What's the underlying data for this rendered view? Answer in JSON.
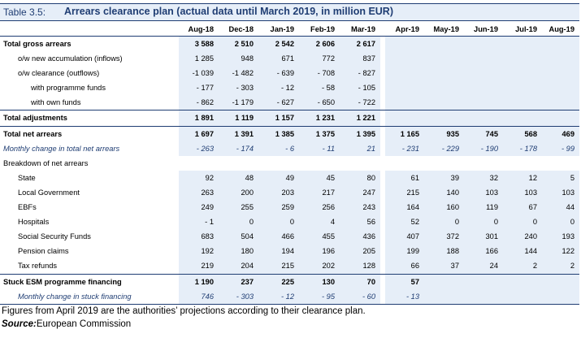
{
  "title": {
    "number": "Table 3.5:",
    "text": "Arrears clearance plan (actual data until March 2019, in million EUR)"
  },
  "columns": [
    "Aug-18",
    "Dec-18",
    "Jan-19",
    "Feb-19",
    "Mar-19",
    "Apr-19",
    "May-19",
    "Jun-19",
    "Jul-19",
    "Aug-19"
  ],
  "rows": [
    {
      "label": "Total gross arrears",
      "indent": 0,
      "style": "bold",
      "values": [
        "3 588",
        "2 510",
        "2 542",
        "2 606",
        "2 617",
        "",
        "",
        "",
        "",
        ""
      ]
    },
    {
      "label": "o/w new accumulation (inflows)",
      "indent": 1,
      "style": "",
      "values": [
        "1 285",
        "948",
        "671",
        "772",
        "837",
        "",
        "",
        "",
        "",
        ""
      ]
    },
    {
      "label": "o/w clearance (outflows)",
      "indent": 1,
      "style": "",
      "values": [
        "-1 039",
        "-1 482",
        "- 639",
        "- 708",
        "- 827",
        "",
        "",
        "",
        "",
        ""
      ]
    },
    {
      "label": "with programme funds",
      "indent": 2,
      "style": "",
      "values": [
        "- 177",
        "- 303",
        "- 12",
        "- 58",
        "- 105",
        "",
        "",
        "",
        "",
        ""
      ]
    },
    {
      "label": "with own funds",
      "indent": 2,
      "style": "",
      "values": [
        "- 862",
        "-1 179",
        "- 627",
        "- 650",
        "- 722",
        "",
        "",
        "",
        "",
        ""
      ]
    },
    {
      "label": "Total adjustments",
      "indent": 0,
      "style": "bold",
      "values": [
        "1 891",
        "1 119",
        "1 157",
        "1 231",
        "1 221",
        "",
        "",
        "",
        "",
        ""
      ]
    },
    {
      "label": "Total net arrears",
      "indent": 0,
      "style": "bold",
      "values": [
        "1 697",
        "1 391",
        "1 385",
        "1 375",
        "1 395",
        "1 165",
        "935",
        "745",
        "568",
        "469"
      ]
    },
    {
      "label": "Monthly change in total net arrears",
      "indent": 0,
      "style": "italic",
      "values": [
        "- 263",
        "- 174",
        "- 6",
        "- 11",
        "21",
        "- 231",
        "- 229",
        "- 190",
        "- 178",
        "- 99"
      ]
    },
    {
      "label": "Breakdown of net arrears",
      "indent": 0,
      "style": "plain",
      "values": [
        "",
        "",
        "",
        "",
        "",
        "",
        "",
        "",
        "",
        ""
      ]
    },
    {
      "label": "State",
      "indent": 1,
      "style": "",
      "values": [
        "92",
        "48",
        "49",
        "45",
        "80",
        "61",
        "39",
        "32",
        "12",
        "5"
      ]
    },
    {
      "label": "Local Government",
      "indent": 1,
      "style": "",
      "values": [
        "263",
        "200",
        "203",
        "217",
        "247",
        "215",
        "140",
        "103",
        "103",
        "103"
      ]
    },
    {
      "label": "EBFs",
      "indent": 1,
      "style": "",
      "values": [
        "249",
        "255",
        "259",
        "256",
        "243",
        "164",
        "160",
        "119",
        "67",
        "44"
      ]
    },
    {
      "label": "Hospitals",
      "indent": 1,
      "style": "",
      "values": [
        "- 1",
        "0",
        "0",
        "4",
        "56",
        "52",
        "0",
        "0",
        "0",
        "0"
      ]
    },
    {
      "label": "Social Security Funds",
      "indent": 1,
      "style": "",
      "values": [
        "683",
        "504",
        "466",
        "455",
        "436",
        "407",
        "372",
        "301",
        "240",
        "193"
      ]
    },
    {
      "label": "Pension claims",
      "indent": 1,
      "style": "",
      "values": [
        "192",
        "180",
        "194",
        "196",
        "205",
        "199",
        "188",
        "166",
        "144",
        "122"
      ]
    },
    {
      "label": "Tax refunds",
      "indent": 1,
      "style": "",
      "values": [
        "219",
        "204",
        "215",
        "202",
        "128",
        "66",
        "37",
        "24",
        "2",
        "2"
      ]
    },
    {
      "label": "Stuck ESM programme financing",
      "indent": 0,
      "style": "bold",
      "values": [
        "1 190",
        "237",
        "225",
        "130",
        "70",
        "57",
        "",
        "",
        "",
        ""
      ]
    },
    {
      "label": "Monthly change in stuck financing",
      "indent": 1,
      "style": "italic",
      "values": [
        "746",
        "- 303",
        "- 12",
        "- 95",
        "- 60",
        "- 13",
        "",
        "",
        "",
        ""
      ]
    }
  ],
  "footnote": "Figures from April 2019 are the authorities’ projections according to their clearance plan.",
  "source": {
    "label": "Source:",
    "text": "European Commission"
  }
}
